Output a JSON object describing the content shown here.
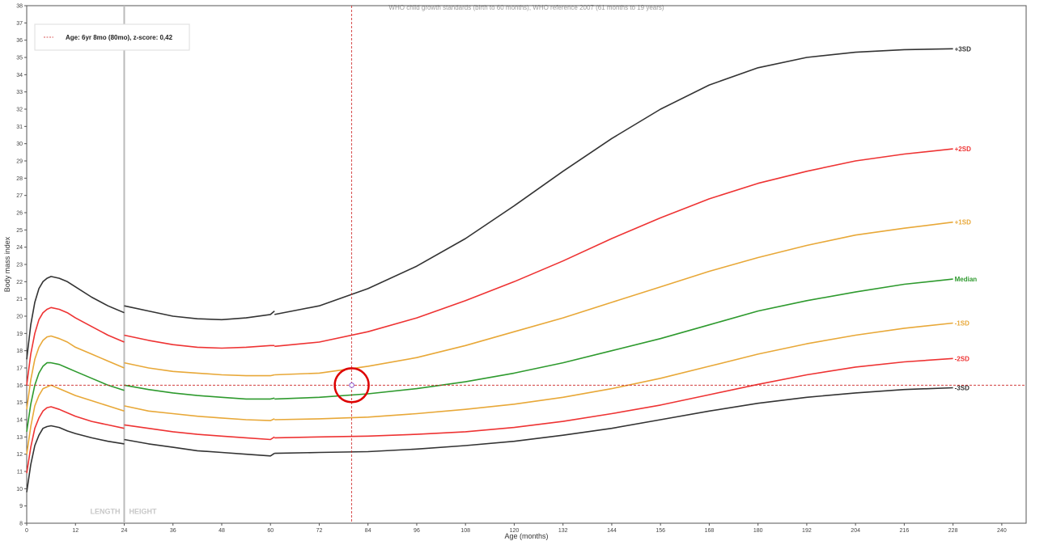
{
  "chart_data": {
    "type": "line",
    "title": "WHO child growth standards (birth to 60 months), WHO reference 2007 (61 months to 19 years)",
    "xlabel": "Age (months)",
    "ylabel": "Body mass index",
    "xlim": [
      0,
      246
    ],
    "ylim": [
      8,
      38
    ],
    "x_ticks": [
      0,
      12,
      24,
      36,
      48,
      60,
      72,
      84,
      96,
      108,
      120,
      132,
      144,
      156,
      168,
      180,
      192,
      204,
      216,
      228,
      240
    ],
    "y_ticks": [
      8,
      9,
      10,
      11,
      12,
      13,
      14,
      15,
      16,
      17,
      18,
      19,
      20,
      21,
      22,
      23,
      24,
      25,
      26,
      27,
      28,
      29,
      30,
      31,
      32,
      33,
      34,
      35,
      36,
      37,
      38
    ],
    "grid": false,
    "legend": {
      "placement": "top-left",
      "text": "Age: 6yr 8mo (80mo), z-score: 0,42"
    },
    "regions": {
      "boundary_x": 24,
      "left_label": "LENGTH",
      "right_label": "HEIGHT"
    },
    "series": [
      {
        "name": "+3SD",
        "color": "#333333",
        "segments": [
          [
            [
              0,
              17.5
            ],
            [
              1,
              19.5
            ],
            [
              2,
              20.8
            ],
            [
              3,
              21.6
            ],
            [
              4,
              22.0
            ],
            [
              5,
              22.2
            ],
            [
              6,
              22.3
            ],
            [
              8,
              22.2
            ],
            [
              10,
              22.0
            ],
            [
              12,
              21.7
            ],
            [
              16,
              21.1
            ],
            [
              20,
              20.6
            ],
            [
              24,
              20.2
            ]
          ],
          [
            [
              24,
              20.6
            ],
            [
              30,
              20.3
            ],
            [
              36,
              20.0
            ],
            [
              42,
              19.85
            ],
            [
              48,
              19.8
            ],
            [
              54,
              19.9
            ],
            [
              60,
              20.1
            ],
            [
              61,
              20.3
            ]
          ],
          [
            [
              61,
              20.1
            ],
            [
              72,
              20.6
            ],
            [
              84,
              21.6
            ],
            [
              96,
              22.9
            ],
            [
              108,
              24.5
            ],
            [
              120,
              26.4
            ],
            [
              132,
              28.4
            ],
            [
              144,
              30.3
            ],
            [
              156,
              32.0
            ],
            [
              168,
              33.4
            ],
            [
              180,
              34.4
            ],
            [
              192,
              35.0
            ],
            [
              204,
              35.3
            ],
            [
              216,
              35.45
            ],
            [
              228,
              35.5
            ]
          ]
        ]
      },
      {
        "name": "+2SD",
        "color": "#ee3333",
        "segments": [
          [
            [
              0,
              16.0
            ],
            [
              1,
              17.8
            ],
            [
              2,
              19.0
            ],
            [
              3,
              19.8
            ],
            [
              4,
              20.2
            ],
            [
              5,
              20.4
            ],
            [
              6,
              20.5
            ],
            [
              8,
              20.4
            ],
            [
              10,
              20.2
            ],
            [
              12,
              19.9
            ],
            [
              16,
              19.4
            ],
            [
              20,
              18.9
            ],
            [
              24,
              18.5
            ]
          ],
          [
            [
              24,
              18.9
            ],
            [
              30,
              18.6
            ],
            [
              36,
              18.35
            ],
            [
              42,
              18.2
            ],
            [
              48,
              18.15
            ],
            [
              54,
              18.2
            ],
            [
              60,
              18.3
            ],
            [
              61,
              18.3
            ]
          ],
          [
            [
              61,
              18.25
            ],
            [
              72,
              18.5
            ],
            [
              84,
              19.1
            ],
            [
              96,
              19.9
            ],
            [
              108,
              20.9
            ],
            [
              120,
              22.0
            ],
            [
              132,
              23.2
            ],
            [
              144,
              24.5
            ],
            [
              156,
              25.7
            ],
            [
              168,
              26.8
            ],
            [
              180,
              27.7
            ],
            [
              192,
              28.4
            ],
            [
              204,
              29.0
            ],
            [
              216,
              29.4
            ],
            [
              228,
              29.7
            ]
          ]
        ]
      },
      {
        "name": "+1SD",
        "color": "#e8a838",
        "segments": [
          [
            [
              0,
              14.6
            ],
            [
              1,
              16.3
            ],
            [
              2,
              17.5
            ],
            [
              3,
              18.2
            ],
            [
              4,
              18.6
            ],
            [
              5,
              18.8
            ],
            [
              6,
              18.85
            ],
            [
              8,
              18.7
            ],
            [
              10,
              18.5
            ],
            [
              12,
              18.2
            ],
            [
              16,
              17.8
            ],
            [
              20,
              17.4
            ],
            [
              24,
              17.0
            ]
          ],
          [
            [
              24,
              17.3
            ],
            [
              30,
              17.0
            ],
            [
              36,
              16.8
            ],
            [
              42,
              16.7
            ],
            [
              48,
              16.6
            ],
            [
              54,
              16.55
            ],
            [
              60,
              16.55
            ],
            [
              61,
              16.6
            ]
          ],
          [
            [
              61,
              16.6
            ],
            [
              72,
              16.7
            ],
            [
              84,
              17.1
            ],
            [
              96,
              17.6
            ],
            [
              108,
              18.3
            ],
            [
              120,
              19.1
            ],
            [
              132,
              19.9
            ],
            [
              144,
              20.8
            ],
            [
              156,
              21.7
            ],
            [
              168,
              22.6
            ],
            [
              180,
              23.4
            ],
            [
              192,
              24.1
            ],
            [
              204,
              24.7
            ],
            [
              216,
              25.1
            ],
            [
              228,
              25.45
            ]
          ]
        ]
      },
      {
        "name": "Median",
        "color": "#2e9a2e",
        "segments": [
          [
            [
              0,
              13.3
            ],
            [
              1,
              14.9
            ],
            [
              2,
              16.0
            ],
            [
              3,
              16.7
            ],
            [
              4,
              17.1
            ],
            [
              5,
              17.3
            ],
            [
              6,
              17.3
            ],
            [
              8,
              17.2
            ],
            [
              10,
              17.0
            ],
            [
              12,
              16.8
            ],
            [
              16,
              16.4
            ],
            [
              20,
              16.0
            ],
            [
              24,
              15.7
            ]
          ],
          [
            [
              24,
              16.0
            ],
            [
              30,
              15.75
            ],
            [
              36,
              15.55
            ],
            [
              42,
              15.4
            ],
            [
              48,
              15.3
            ],
            [
              54,
              15.2
            ],
            [
              60,
              15.2
            ],
            [
              61,
              15.25
            ]
          ],
          [
            [
              61,
              15.2
            ],
            [
              72,
              15.3
            ],
            [
              84,
              15.5
            ],
            [
              96,
              15.8
            ],
            [
              108,
              16.2
            ],
            [
              120,
              16.7
            ],
            [
              132,
              17.3
            ],
            [
              144,
              18.0
            ],
            [
              156,
              18.7
            ],
            [
              168,
              19.5
            ],
            [
              180,
              20.3
            ],
            [
              192,
              20.9
            ],
            [
              204,
              21.4
            ],
            [
              216,
              21.85
            ],
            [
              228,
              22.15
            ]
          ]
        ]
      },
      {
        "name": "-1SD",
        "color": "#e8a838",
        "segments": [
          [
            [
              0,
              12.0
            ],
            [
              1,
              13.6
            ],
            [
              2,
              14.8
            ],
            [
              3,
              15.4
            ],
            [
              4,
              15.8
            ],
            [
              5,
              15.9
            ],
            [
              6,
              16.0
            ],
            [
              8,
              15.8
            ],
            [
              10,
              15.6
            ],
            [
              12,
              15.4
            ],
            [
              16,
              15.1
            ],
            [
              20,
              14.8
            ],
            [
              24,
              14.5
            ]
          ],
          [
            [
              24,
              14.8
            ],
            [
              30,
              14.5
            ],
            [
              36,
              14.35
            ],
            [
              42,
              14.2
            ],
            [
              48,
              14.1
            ],
            [
              54,
              14.0
            ],
            [
              60,
              13.95
            ],
            [
              61,
              14.05
            ]
          ],
          [
            [
              61,
              14.0
            ],
            [
              72,
              14.05
            ],
            [
              84,
              14.15
            ],
            [
              96,
              14.35
            ],
            [
              108,
              14.6
            ],
            [
              120,
              14.9
            ],
            [
              132,
              15.3
            ],
            [
              144,
              15.8
            ],
            [
              156,
              16.4
            ],
            [
              168,
              17.1
            ],
            [
              180,
              17.8
            ],
            [
              192,
              18.4
            ],
            [
              204,
              18.9
            ],
            [
              216,
              19.3
            ],
            [
              228,
              19.6
            ]
          ]
        ]
      },
      {
        "name": "-2SD",
        "color": "#ee3333",
        "segments": [
          [
            [
              0,
              10.9
            ],
            [
              1,
              12.4
            ],
            [
              2,
              13.5
            ],
            [
              3,
              14.1
            ],
            [
              4,
              14.5
            ],
            [
              5,
              14.7
            ],
            [
              6,
              14.75
            ],
            [
              8,
              14.6
            ],
            [
              10,
              14.4
            ],
            [
              12,
              14.2
            ],
            [
              16,
              13.9
            ],
            [
              20,
              13.7
            ],
            [
              24,
              13.5
            ]
          ],
          [
            [
              24,
              13.7
            ],
            [
              30,
              13.5
            ],
            [
              36,
              13.3
            ],
            [
              42,
              13.15
            ],
            [
              48,
              13.05
            ],
            [
              54,
              12.95
            ],
            [
              60,
              12.85
            ],
            [
              61,
              13.0
            ]
          ],
          [
            [
              61,
              12.95
            ],
            [
              72,
              13.0
            ],
            [
              84,
              13.05
            ],
            [
              96,
              13.15
            ],
            [
              108,
              13.3
            ],
            [
              120,
              13.55
            ],
            [
              132,
              13.9
            ],
            [
              144,
              14.35
            ],
            [
              156,
              14.85
            ],
            [
              168,
              15.45
            ],
            [
              180,
              16.05
            ],
            [
              192,
              16.6
            ],
            [
              204,
              17.05
            ],
            [
              216,
              17.35
            ],
            [
              228,
              17.55
            ]
          ]
        ]
      },
      {
        "name": "-3SD",
        "color": "#333333",
        "segments": [
          [
            [
              0,
              9.8
            ],
            [
              1,
              11.4
            ],
            [
              2,
              12.5
            ],
            [
              3,
              13.1
            ],
            [
              4,
              13.5
            ],
            [
              5,
              13.6
            ],
            [
              6,
              13.65
            ],
            [
              8,
              13.55
            ],
            [
              10,
              13.35
            ],
            [
              12,
              13.2
            ],
            [
              16,
              12.95
            ],
            [
              20,
              12.75
            ],
            [
              24,
              12.6
            ]
          ],
          [
            [
              24,
              12.85
            ],
            [
              30,
              12.6
            ],
            [
              36,
              12.4
            ],
            [
              42,
              12.2
            ],
            [
              48,
              12.1
            ],
            [
              54,
              12.0
            ],
            [
              60,
              11.9
            ],
            [
              61,
              12.05
            ]
          ],
          [
            [
              61,
              12.05
            ],
            [
              72,
              12.1
            ],
            [
              84,
              12.15
            ],
            [
              96,
              12.3
            ],
            [
              108,
              12.5
            ],
            [
              120,
              12.75
            ],
            [
              132,
              13.1
            ],
            [
              144,
              13.5
            ],
            [
              156,
              14.0
            ],
            [
              168,
              14.5
            ],
            [
              180,
              14.95
            ],
            [
              192,
              15.3
            ],
            [
              204,
              15.55
            ],
            [
              216,
              15.75
            ],
            [
              228,
              15.85
            ]
          ]
        ]
      }
    ],
    "reference_lines": {
      "age_months": 80,
      "bmi": 16.0,
      "color": "#cc2222"
    },
    "measurement": {
      "x": 80,
      "y": 16.0,
      "marker_color": "#8855cc",
      "highlight_color": "#dd0000"
    }
  }
}
